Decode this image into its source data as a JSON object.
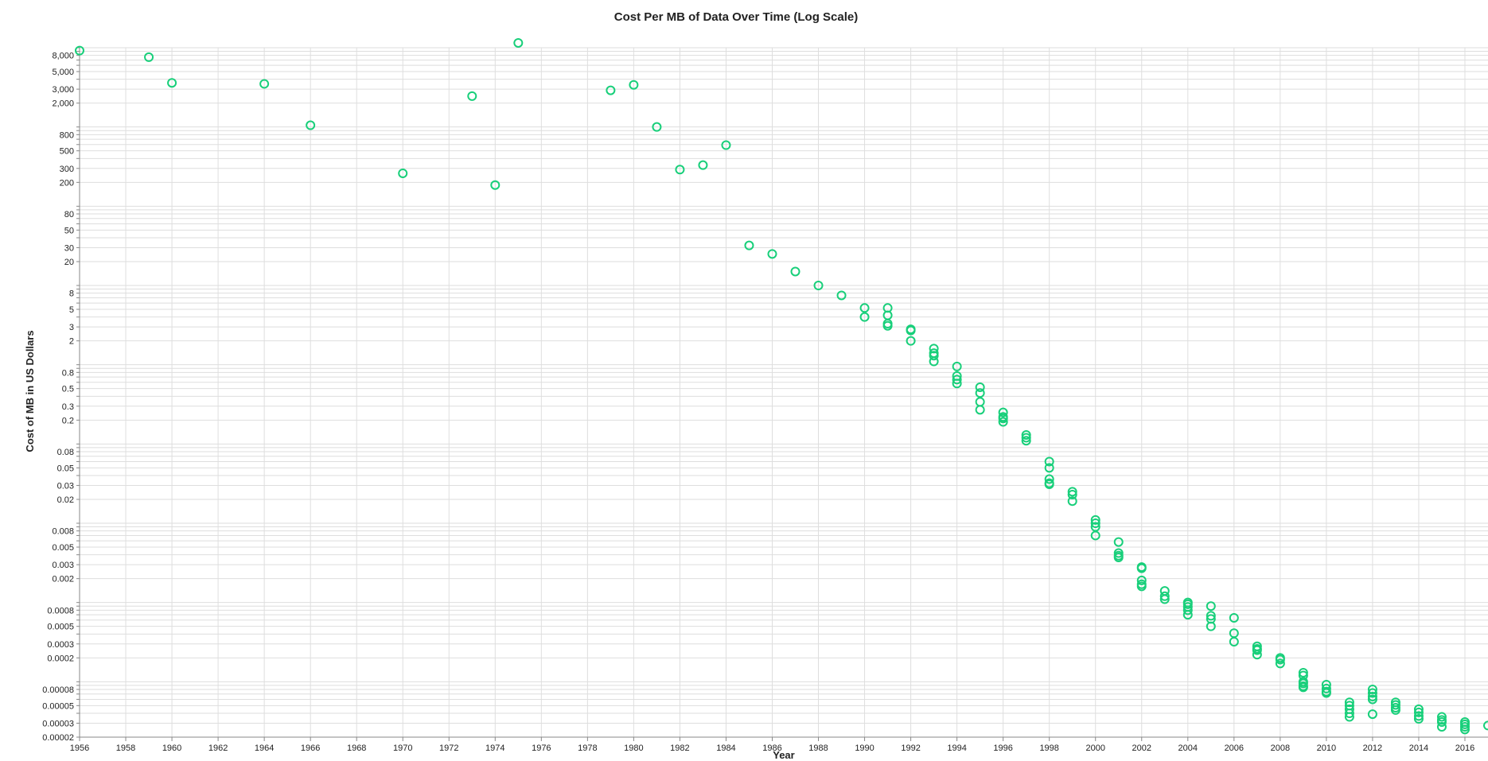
{
  "chart_data": {
    "type": "scatter",
    "title": "Cost Per MB of Data Over Time (Log Scale)",
    "xlabel": "Year",
    "ylabel": "Cost of MB in US Dollars",
    "xlim": [
      1956,
      2017
    ],
    "ylim": [
      2e-05,
      10000
    ],
    "yscale": "log",
    "grid": true,
    "marker": "open-circle",
    "color": "#18cf7a",
    "x_ticks": [
      "1956",
      "1958",
      "1960",
      "1962",
      "1964",
      "1966",
      "1968",
      "1970",
      "1972",
      "1974",
      "1976",
      "1978",
      "1980",
      "1982",
      "1984",
      "1986",
      "1988",
      "1990",
      "1992",
      "1994",
      "1996",
      "1998",
      "2000",
      "2002",
      "2004",
      "2006",
      "2008",
      "2010",
      "2012",
      "2014",
      "2016"
    ],
    "y_ticks": [
      {
        "v": 8000,
        "label": "8,000"
      },
      {
        "v": 5000,
        "label": "5,000"
      },
      {
        "v": 3000,
        "label": "3,000"
      },
      {
        "v": 2000,
        "label": "2,000"
      },
      {
        "v": 800,
        "label": "800"
      },
      {
        "v": 500,
        "label": "500"
      },
      {
        "v": 300,
        "label": "300"
      },
      {
        "v": 200,
        "label": "200"
      },
      {
        "v": 80,
        "label": "80"
      },
      {
        "v": 50,
        "label": "50"
      },
      {
        "v": 30,
        "label": "30"
      },
      {
        "v": 20,
        "label": "20"
      },
      {
        "v": 8,
        "label": "8"
      },
      {
        "v": 5,
        "label": "5"
      },
      {
        "v": 3,
        "label": "3"
      },
      {
        "v": 2,
        "label": "2"
      },
      {
        "v": 0.8,
        "label": "0.8"
      },
      {
        "v": 0.5,
        "label": "0.5"
      },
      {
        "v": 0.3,
        "label": "0.3"
      },
      {
        "v": 0.2,
        "label": "0.2"
      },
      {
        "v": 0.08,
        "label": "0.08"
      },
      {
        "v": 0.05,
        "label": "0.05"
      },
      {
        "v": 0.03,
        "label": "0.03"
      },
      {
        "v": 0.02,
        "label": "0.02"
      },
      {
        "v": 0.008,
        "label": "0.008"
      },
      {
        "v": 0.005,
        "label": "0.005"
      },
      {
        "v": 0.003,
        "label": "0.003"
      },
      {
        "v": 0.002,
        "label": "0.002"
      },
      {
        "v": 0.0008,
        "label": "0.0008"
      },
      {
        "v": 0.0005,
        "label": "0.0005"
      },
      {
        "v": 0.0003,
        "label": "0.0003"
      },
      {
        "v": 0.0002,
        "label": "0.0002"
      },
      {
        "v": 8e-05,
        "label": "0.00008"
      },
      {
        "v": 5e-05,
        "label": "0.00005"
      },
      {
        "v": 3e-05,
        "label": "0.00003"
      },
      {
        "v": 2e-05,
        "label": "0.00002"
      }
    ],
    "points": [
      {
        "x": 1956,
        "y": 9200
      },
      {
        "x": 1959,
        "y": 7600
      },
      {
        "x": 1960,
        "y": 3600
      },
      {
        "x": 1964,
        "y": 3500
      },
      {
        "x": 1966,
        "y": 1050
      },
      {
        "x": 1970,
        "y": 260
      },
      {
        "x": 1973,
        "y": 2450
      },
      {
        "x": 1974,
        "y": 185
      },
      {
        "x": 1975,
        "y": 11500
      },
      {
        "x": 1979,
        "y": 2900
      },
      {
        "x": 1980,
        "y": 3400
      },
      {
        "x": 1981,
        "y": 1000
      },
      {
        "x": 1982,
        "y": 290
      },
      {
        "x": 1983,
        "y": 330
      },
      {
        "x": 1984,
        "y": 590
      },
      {
        "x": 1985,
        "y": 32
      },
      {
        "x": 1986,
        "y": 25
      },
      {
        "x": 1987,
        "y": 15
      },
      {
        "x": 1988,
        "y": 10
      },
      {
        "x": 1989,
        "y": 7.5
      },
      {
        "x": 1990,
        "y": 5.2
      },
      {
        "x": 1990,
        "y": 4
      },
      {
        "x": 1991,
        "y": 5.2
      },
      {
        "x": 1991,
        "y": 4.2
      },
      {
        "x": 1991,
        "y": 3.3
      },
      {
        "x": 1991,
        "y": 3.1
      },
      {
        "x": 1992,
        "y": 2.8
      },
      {
        "x": 1992,
        "y": 2.7
      },
      {
        "x": 1992,
        "y": 2
      },
      {
        "x": 1993,
        "y": 1.6
      },
      {
        "x": 1993,
        "y": 1.4
      },
      {
        "x": 1993,
        "y": 1.3
      },
      {
        "x": 1993,
        "y": 1.1
      },
      {
        "x": 1994,
        "y": 0.95
      },
      {
        "x": 1994,
        "y": 0.72
      },
      {
        "x": 1994,
        "y": 0.65
      },
      {
        "x": 1994,
        "y": 0.58
      },
      {
        "x": 1995,
        "y": 0.52
      },
      {
        "x": 1995,
        "y": 0.44
      },
      {
        "x": 1995,
        "y": 0.34
      },
      {
        "x": 1995,
        "y": 0.27
      },
      {
        "x": 1996,
        "y": 0.25
      },
      {
        "x": 1996,
        "y": 0.22
      },
      {
        "x": 1996,
        "y": 0.21
      },
      {
        "x": 1996,
        "y": 0.19
      },
      {
        "x": 1997,
        "y": 0.13
      },
      {
        "x": 1997,
        "y": 0.12
      },
      {
        "x": 1997,
        "y": 0.11
      },
      {
        "x": 1998,
        "y": 0.06
      },
      {
        "x": 1998,
        "y": 0.05
      },
      {
        "x": 1998,
        "y": 0.036
      },
      {
        "x": 1998,
        "y": 0.032
      },
      {
        "x": 1998,
        "y": 0.031
      },
      {
        "x": 1999,
        "y": 0.025
      },
      {
        "x": 1999,
        "y": 0.023
      },
      {
        "x": 1999,
        "y": 0.019
      },
      {
        "x": 2000,
        "y": 0.011
      },
      {
        "x": 2000,
        "y": 0.01
      },
      {
        "x": 2000,
        "y": 0.009
      },
      {
        "x": 2000,
        "y": 0.007
      },
      {
        "x": 2001,
        "y": 0.0058
      },
      {
        "x": 2001,
        "y": 0.0042
      },
      {
        "x": 2001,
        "y": 0.0039
      },
      {
        "x": 2001,
        "y": 0.0037
      },
      {
        "x": 2002,
        "y": 0.0028
      },
      {
        "x": 2002,
        "y": 0.0027
      },
      {
        "x": 2002,
        "y": 0.0019
      },
      {
        "x": 2002,
        "y": 0.0017
      },
      {
        "x": 2002,
        "y": 0.0016
      },
      {
        "x": 2003,
        "y": 0.0014
      },
      {
        "x": 2003,
        "y": 0.0012
      },
      {
        "x": 2003,
        "y": 0.0011
      },
      {
        "x": 2004,
        "y": 0.001
      },
      {
        "x": 2004,
        "y": 0.00095
      },
      {
        "x": 2004,
        "y": 0.00088
      },
      {
        "x": 2004,
        "y": 0.0008
      },
      {
        "x": 2004,
        "y": 0.0007
      },
      {
        "x": 2005,
        "y": 0.0009
      },
      {
        "x": 2005,
        "y": 0.00068
      },
      {
        "x": 2005,
        "y": 0.00062
      },
      {
        "x": 2005,
        "y": 0.0005
      },
      {
        "x": 2006,
        "y": 0.00064
      },
      {
        "x": 2006,
        "y": 0.00041
      },
      {
        "x": 2006,
        "y": 0.00032
      },
      {
        "x": 2007,
        "y": 0.00028
      },
      {
        "x": 2007,
        "y": 0.00026
      },
      {
        "x": 2007,
        "y": 0.00025
      },
      {
        "x": 2007,
        "y": 0.00022
      },
      {
        "x": 2008,
        "y": 0.0002
      },
      {
        "x": 2008,
        "y": 0.00019
      },
      {
        "x": 2008,
        "y": 0.00017
      },
      {
        "x": 2009,
        "y": 0.00013
      },
      {
        "x": 2009,
        "y": 0.00012
      },
      {
        "x": 2009,
        "y": 0.0001
      },
      {
        "x": 2009,
        "y": 9.5e-05
      },
      {
        "x": 2009,
        "y": 8.8e-05
      },
      {
        "x": 2009,
        "y": 8.5e-05
      },
      {
        "x": 2010,
        "y": 9.2e-05
      },
      {
        "x": 2010,
        "y": 8.2e-05
      },
      {
        "x": 2010,
        "y": 7.5e-05
      },
      {
        "x": 2010,
        "y": 7.2e-05
      },
      {
        "x": 2011,
        "y": 5.5e-05
      },
      {
        "x": 2011,
        "y": 5e-05
      },
      {
        "x": 2011,
        "y": 4.5e-05
      },
      {
        "x": 2011,
        "y": 4e-05
      },
      {
        "x": 2011,
        "y": 3.6e-05
      },
      {
        "x": 2012,
        "y": 8e-05
      },
      {
        "x": 2012,
        "y": 7.2e-05
      },
      {
        "x": 2012,
        "y": 6.5e-05
      },
      {
        "x": 2012,
        "y": 6e-05
      },
      {
        "x": 2012,
        "y": 3.9e-05
      },
      {
        "x": 2013,
        "y": 5.5e-05
      },
      {
        "x": 2013,
        "y": 5.1e-05
      },
      {
        "x": 2013,
        "y": 4.7e-05
      },
      {
        "x": 2013,
        "y": 4.4e-05
      },
      {
        "x": 2014,
        "y": 4.5e-05
      },
      {
        "x": 2014,
        "y": 4.1e-05
      },
      {
        "x": 2014,
        "y": 3.7e-05
      },
      {
        "x": 2014,
        "y": 3.4e-05
      },
      {
        "x": 2015,
        "y": 3.6e-05
      },
      {
        "x": 2015,
        "y": 3.3e-05
      },
      {
        "x": 2015,
        "y": 3.1e-05
      },
      {
        "x": 2015,
        "y": 2.7e-05
      },
      {
        "x": 2016,
        "y": 3.1e-05
      },
      {
        "x": 2016,
        "y": 2.9e-05
      },
      {
        "x": 2016,
        "y": 2.7e-05
      },
      {
        "x": 2016,
        "y": 2.5e-05
      },
      {
        "x": 2017,
        "y": 2.8e-05
      }
    ]
  }
}
